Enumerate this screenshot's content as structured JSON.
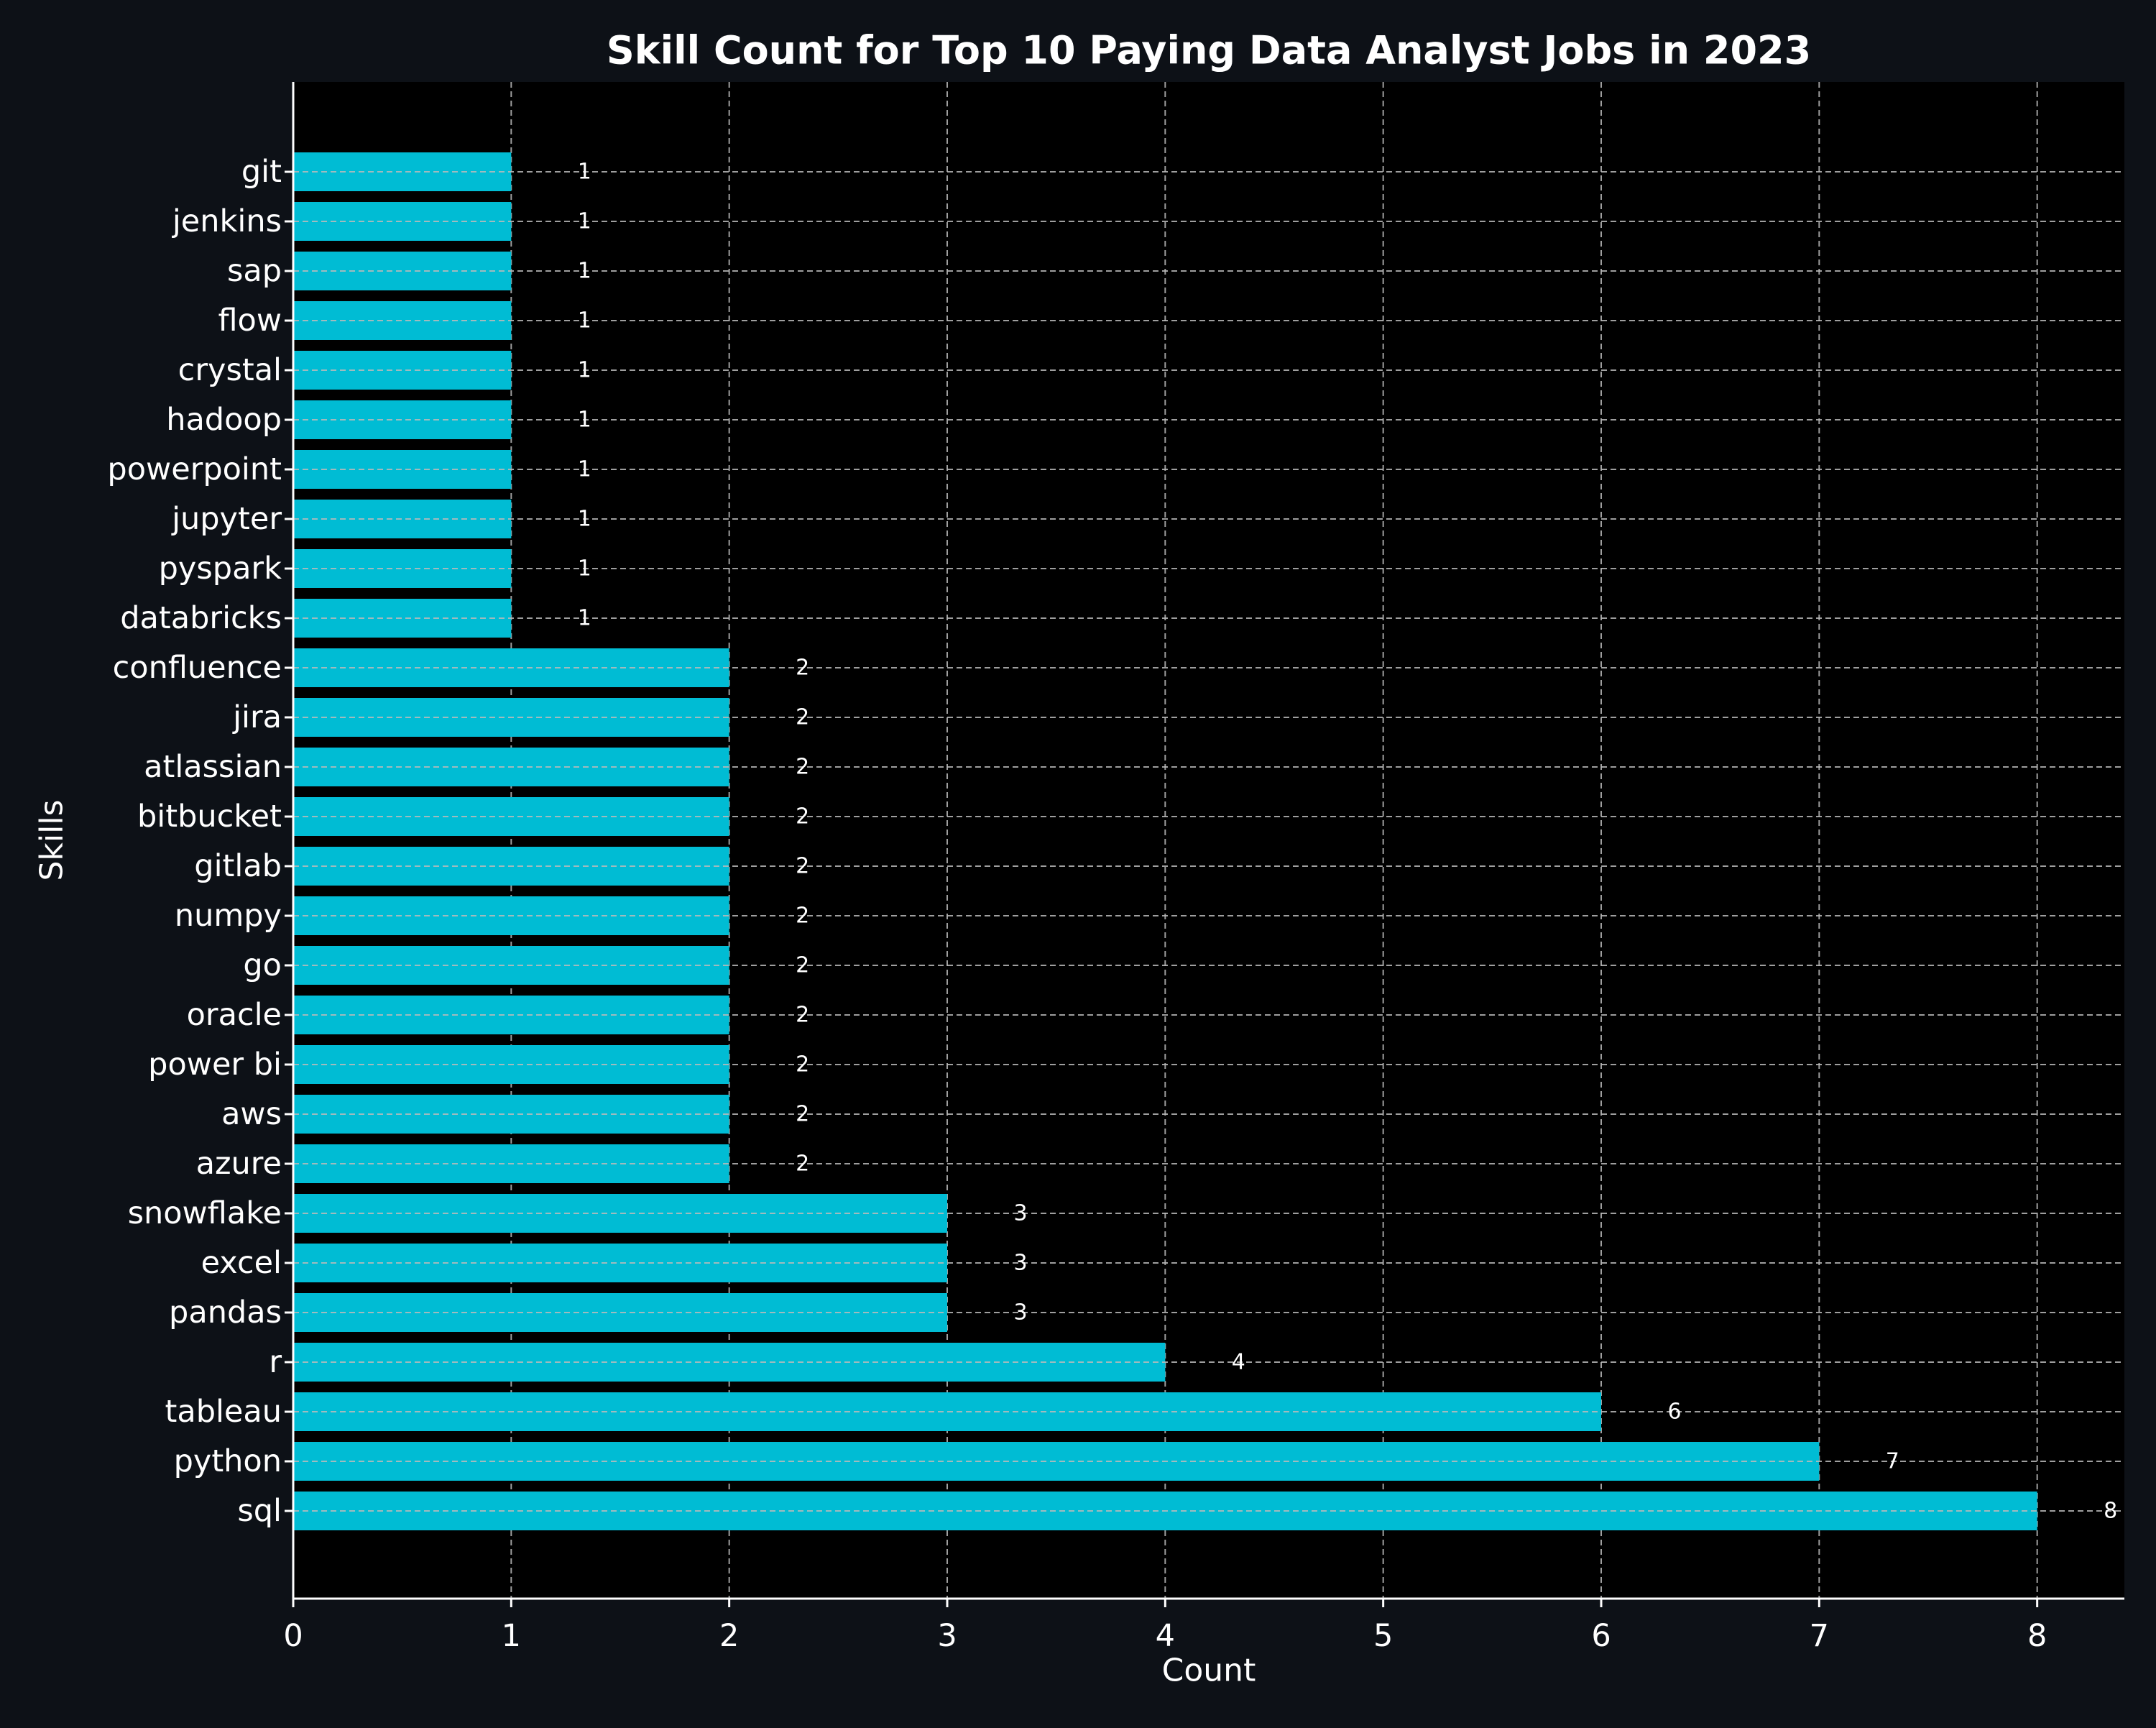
{
  "chart_data": {
    "type": "bar",
    "orientation": "horizontal",
    "title": "Skill Count for Top 10 Paying Data Analyst Jobs in 2023",
    "xlabel": "Count",
    "ylabel": "Skills",
    "xlim": [
      0,
      8.4
    ],
    "xticks": [
      0,
      1,
      2,
      3,
      4,
      5,
      6,
      7,
      8
    ],
    "categories": [
      "git",
      "jenkins",
      "sap",
      "flow",
      "crystal",
      "hadoop",
      "powerpoint",
      "jupyter",
      "pyspark",
      "databricks",
      "confluence",
      "jira",
      "atlassian",
      "bitbucket",
      "gitlab",
      "numpy",
      "go",
      "oracle",
      "power bi",
      "aws",
      "azure",
      "snowflake",
      "excel",
      "pandas",
      "r",
      "tableau",
      "python",
      "sql"
    ],
    "values": [
      1,
      1,
      1,
      1,
      1,
      1,
      1,
      1,
      1,
      1,
      2,
      2,
      2,
      2,
      2,
      2,
      2,
      2,
      2,
      2,
      2,
      3,
      3,
      3,
      4,
      6,
      7,
      8
    ],
    "data_labels": true,
    "grid": true,
    "colors": {
      "background": "#0d1117",
      "plot_background": "#000000",
      "bar": "#00bcd4",
      "text": "#ffffff",
      "grid": "#bbbbbb"
    }
  }
}
